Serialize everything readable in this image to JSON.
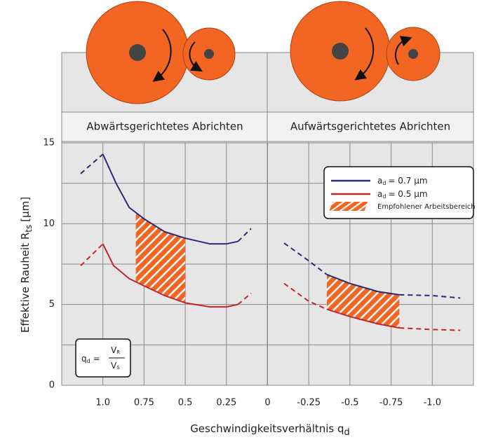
{
  "chart_data": {
    "type": "line",
    "panel_titles": [
      "Abwärtsgerichtetes Abrichten",
      "Aufwärtsgerichtetes Abrichten"
    ],
    "ylabel": {
      "main": "Effektive Rauheit R",
      "sub": "ts",
      "unit": "[µm]"
    },
    "xlabel": {
      "main": "Geschwindigkeitsverhältnis q",
      "sub": "d"
    },
    "xlim": [
      1.25,
      -1.25
    ],
    "xticks": [
      {
        "value": 1,
        "label": "1.0"
      },
      0.75,
      0.5,
      0.25,
      0,
      -0.25,
      -0.5,
      -0.75,
      {
        "value": -1,
        "label": "-1.0"
      }
    ],
    "ylim": [
      0,
      15
    ],
    "yticks": [
      0,
      5,
      10,
      15
    ],
    "grid": true,
    "legend": "upper right",
    "series": [
      {
        "name": "a",
        "name_sub": "d",
        "name_rest": "= 0.7 µm",
        "color": "#2b2a78",
        "segments": [
          {
            "style": "dashed",
            "x": [
              1.135,
              1.0
            ],
            "values": [
              13.1,
              14.3
            ]
          },
          {
            "style": "solid",
            "x": [
              1.0,
              0.92,
              0.84,
              0.75,
              0.625,
              0.5,
              0.35,
              0.25,
              0.18
            ],
            "values": [
              14.3,
              12.5,
              11.0,
              10.3,
              9.5,
              9.1,
              8.75,
              8.75,
              8.9
            ]
          },
          {
            "style": "dashed",
            "x": [
              0.18,
              0.1
            ],
            "values": [
              8.9,
              9.7
            ]
          },
          {
            "style": "dashed",
            "x": [
              -0.1,
              -0.25,
              -0.36
            ],
            "values": [
              8.8,
              7.7,
              6.85
            ]
          },
          {
            "style": "solid",
            "x": [
              -0.36,
              -0.5,
              -0.67,
              -0.8
            ],
            "values": [
              6.85,
              6.3,
              5.8,
              5.6
            ]
          },
          {
            "style": "dashed",
            "x": [
              -0.8,
              -1.0,
              -1.17
            ],
            "values": [
              5.6,
              5.55,
              5.4
            ]
          }
        ]
      },
      {
        "name": "a",
        "name_sub": "d",
        "name_rest": "= 0.5 µm",
        "color": "#c1272d",
        "segments": [
          {
            "style": "dashed",
            "x": [
              1.135,
              1.0
            ],
            "values": [
              7.4,
              8.75
            ]
          },
          {
            "style": "solid",
            "x": [
              1.0,
              0.935,
              0.84,
              0.75,
              0.625,
              0.5,
              0.35,
              0.25,
              0.18
            ],
            "values": [
              8.75,
              7.4,
              6.6,
              6.15,
              5.55,
              5.1,
              4.85,
              4.85,
              5.0
            ]
          },
          {
            "style": "dashed",
            "x": [
              0.18,
              0.1
            ],
            "values": [
              5.0,
              5.7
            ]
          },
          {
            "style": "dashed",
            "x": [
              -0.1,
              -0.25,
              -0.36
            ],
            "values": [
              6.3,
              5.2,
              4.7
            ]
          },
          {
            "style": "solid",
            "x": [
              -0.36,
              -0.5,
              -0.67,
              -0.8
            ],
            "values": [
              4.7,
              4.25,
              3.8,
              3.55
            ]
          },
          {
            "style": "dashed",
            "x": [
              -0.8,
              -1.0,
              -1.17
            ],
            "values": [
              3.55,
              3.45,
              3.4
            ]
          }
        ]
      }
    ],
    "recommended": {
      "name": "Empfohlener Arbeitsbereich",
      "color": "#f26522",
      "ranges": [
        [
          0.8,
          0.5
        ],
        [
          -0.36,
          -0.8
        ]
      ]
    },
    "formula": {
      "lhs": "q",
      "lhs_sub": "d",
      "eq": "=",
      "num": "V",
      "num_sub": "R",
      "den": "V",
      "den_sub": "S"
    }
  }
}
